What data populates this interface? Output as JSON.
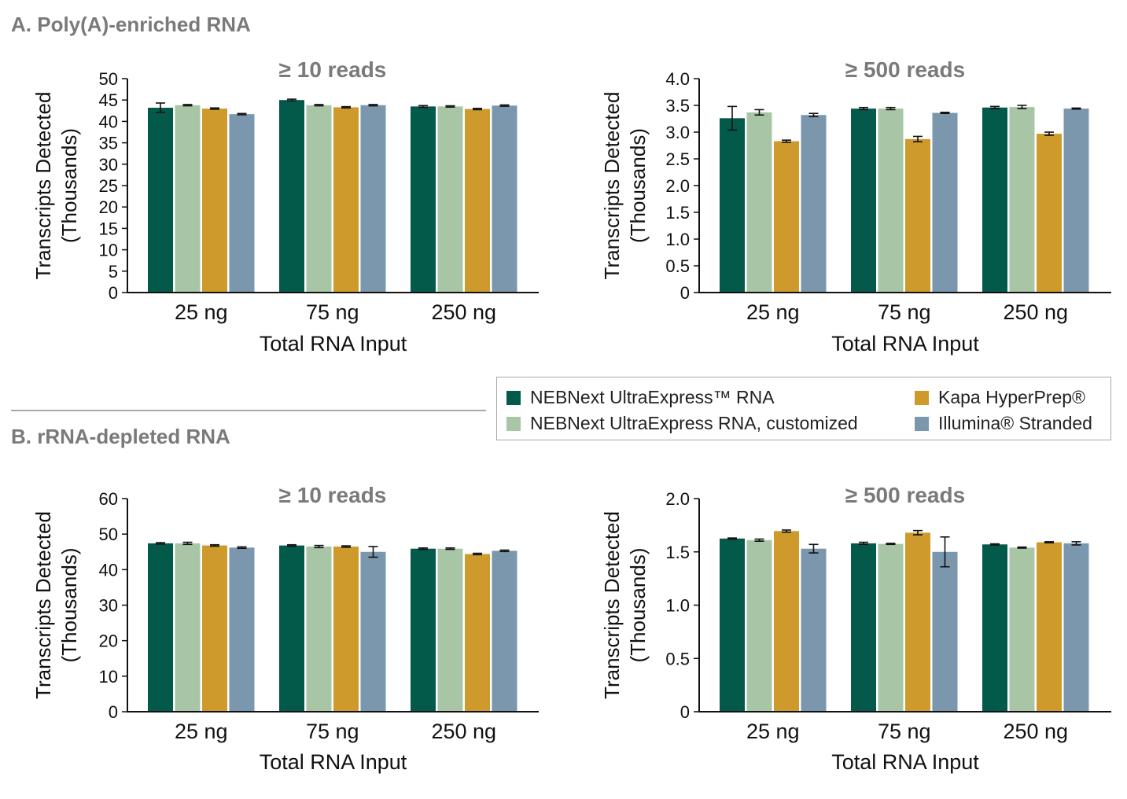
{
  "sections": {
    "a_title": "A. Poly(A)-enriched RNA",
    "b_title": "B. rRNA-depleted RNA"
  },
  "colors": {
    "ultraexpress": "#035a4a",
    "ultraexpress_custom": "#a8c6a6",
    "kapa": "#cf9a2c",
    "illumina": "#7b97ad"
  },
  "legend": [
    {
      "name": "NEBNext UltraExpress™ RNA",
      "color_key": "ultraexpress"
    },
    {
      "name": "NEBNext UltraExpress RNA, customized",
      "color_key": "ultraexpress_custom"
    },
    {
      "name": "Kapa HyperPrep®",
      "color_key": "kapa"
    },
    {
      "name": "Illumina® Stranded",
      "color_key": "illumina"
    }
  ],
  "chart_data": [
    {
      "id": "a10",
      "type": "bar",
      "title": "≥ 10 reads",
      "xlabel": "Total RNA Input",
      "ylabel": "Transcripts Detected",
      "ylabel2": "(Thousands)",
      "categories": [
        "25 ng",
        "75 ng",
        "250 ng"
      ],
      "ylim": [
        0,
        50
      ],
      "yticks": [
        "0",
        "5",
        "10",
        "15",
        "20",
        "25",
        "30",
        "35",
        "40",
        "45",
        "50"
      ],
      "series": [
        {
          "name": "NEBNext UltraExpress™ RNA",
          "values": [
            43.2,
            45.0,
            43.5
          ],
          "errors": [
            1.1,
            0.2,
            0.2
          ]
        },
        {
          "name": "NEBNext UltraExpress RNA, customized",
          "values": [
            43.8,
            43.8,
            43.5
          ],
          "errors": [
            0.15,
            0.15,
            0.15
          ]
        },
        {
          "name": "Kapa HyperPrep®",
          "values": [
            43.0,
            43.3,
            42.9
          ],
          "errors": [
            0.15,
            0.15,
            0.15
          ]
        },
        {
          "name": "Illumina® Stranded",
          "values": [
            41.7,
            43.8,
            43.7
          ],
          "errors": [
            0.15,
            0.15,
            0.15
          ]
        }
      ]
    },
    {
      "id": "a500",
      "type": "bar",
      "title": "≥ 500 reads",
      "xlabel": "Total RNA Input",
      "ylabel": "Transcripts Detected",
      "ylabel2": "(Thousands)",
      "categories": [
        "25 ng",
        "75 ng",
        "250 ng"
      ],
      "ylim": [
        0,
        4
      ],
      "yticks": [
        "0",
        "0.5",
        "1.0",
        "1.5",
        "2.0",
        "2.5",
        "3.0",
        "3.5",
        "4.0"
      ],
      "series": [
        {
          "name": "NEBNext UltraExpress™ RNA",
          "values": [
            3.26,
            3.44,
            3.46
          ],
          "errors": [
            0.22,
            0.02,
            0.02
          ]
        },
        {
          "name": "NEBNext UltraExpress RNA, customized",
          "values": [
            3.37,
            3.44,
            3.47
          ],
          "errors": [
            0.05,
            0.02,
            0.03
          ]
        },
        {
          "name": "Kapa HyperPrep®",
          "values": [
            2.83,
            2.87,
            2.97
          ],
          "errors": [
            0.02,
            0.05,
            0.03
          ]
        },
        {
          "name": "Illumina® Stranded",
          "values": [
            3.32,
            3.36,
            3.44
          ],
          "errors": [
            0.03,
            0.01,
            0.01
          ]
        }
      ]
    },
    {
      "id": "b10",
      "type": "bar",
      "title": "≥ 10 reads",
      "xlabel": "Total RNA Input",
      "ylabel": "Transcripts Detected",
      "ylabel2": "(Thousands)",
      "categories": [
        "25 ng",
        "75 ng",
        "250 ng"
      ],
      "ylim": [
        0,
        60
      ],
      "yticks": [
        "0",
        "10",
        "20",
        "30",
        "40",
        "50",
        "60"
      ],
      "series": [
        {
          "name": "NEBNext UltraExpress™ RNA",
          "values": [
            47.4,
            46.8,
            45.9
          ],
          "errors": [
            0.2,
            0.2,
            0.2
          ]
        },
        {
          "name": "NEBNext UltraExpress RNA, customized",
          "values": [
            47.4,
            46.5,
            45.9
          ],
          "errors": [
            0.3,
            0.3,
            0.2
          ]
        },
        {
          "name": "Kapa HyperPrep®",
          "values": [
            46.8,
            46.5,
            44.4
          ],
          "errors": [
            0.2,
            0.2,
            0.2
          ]
        },
        {
          "name": "Illumina® Stranded",
          "values": [
            46.2,
            45.0,
            45.3
          ],
          "errors": [
            0.2,
            1.5,
            0.2
          ]
        }
      ]
    },
    {
      "id": "b500",
      "type": "bar",
      "title": "≥ 500 reads",
      "xlabel": "Total RNA Input",
      "ylabel": "Transcripts Detected",
      "ylabel2": "(Thousands)",
      "categories": [
        "25 ng",
        "75 ng",
        "250 ng"
      ],
      "ylim": [
        0,
        2
      ],
      "yticks": [
        "0",
        "0.5",
        "1.0",
        "1.5",
        "2.0"
      ],
      "series": [
        {
          "name": "NEBNext UltraExpress™ RNA",
          "values": [
            1.625,
            1.58,
            1.57
          ],
          "errors": [
            0.005,
            0.01,
            0.005
          ]
        },
        {
          "name": "NEBNext UltraExpress RNA, customized",
          "values": [
            1.61,
            1.575,
            1.54
          ],
          "errors": [
            0.01,
            0.005,
            0.005
          ]
        },
        {
          "name": "Kapa HyperPrep®",
          "values": [
            1.695,
            1.68,
            1.59
          ],
          "errors": [
            0.01,
            0.02,
            0.005
          ]
        },
        {
          "name": "Illumina® Stranded",
          "values": [
            1.53,
            1.5,
            1.58
          ],
          "errors": [
            0.04,
            0.14,
            0.015
          ]
        }
      ]
    }
  ]
}
